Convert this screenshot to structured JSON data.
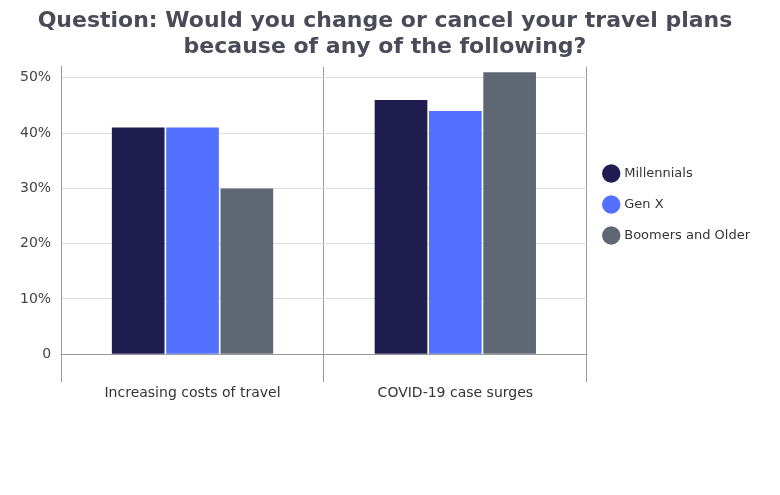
{
  "chart_data": {
    "type": "bar",
    "title": "Question: Would you change or cancel your travel plans because of any of the following?",
    "categories": [
      "Increasing costs of travel",
      "COVID-19 case surges"
    ],
    "series": [
      {
        "name": "Millennials",
        "color": "#1f1d4f",
        "values": [
          41,
          46
        ]
      },
      {
        "name": "Gen X",
        "color": "#5470ff",
        "values": [
          41,
          44
        ]
      },
      {
        "name": "Boomers and Older",
        "color": "#5f6775",
        "values": [
          30,
          51
        ]
      }
    ],
    "ylim": [
      0,
      52
    ],
    "yticks": [
      0,
      {
        "value": 10,
        "label": "10%"
      },
      {
        "value": 20,
        "label": "20%"
      },
      {
        "value": 30,
        "label": "30%"
      },
      {
        "value": 40,
        "label": "40%"
      },
      {
        "value": 50,
        "label": "50%"
      }
    ],
    "grid": true,
    "legend": "right"
  }
}
